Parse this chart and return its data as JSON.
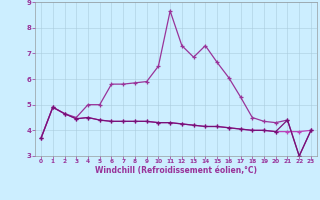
{
  "xlabel": "Windchill (Refroidissement éolien,°C)",
  "background_color": "#cceeff",
  "grid_color": "#aaccdd",
  "line_color1": "#993399",
  "line_color2": "#bb44bb",
  "line_color3": "#771177",
  "xmin": -0.5,
  "xmax": 23.5,
  "ymin": 3,
  "ymax": 9,
  "yticks": [
    3,
    4,
    5,
    6,
    7,
    8,
    9
  ],
  "xticks": [
    0,
    1,
    2,
    3,
    4,
    5,
    6,
    7,
    8,
    9,
    10,
    11,
    12,
    13,
    14,
    15,
    16,
    17,
    18,
    19,
    20,
    21,
    22,
    23
  ],
  "series1_x": [
    0,
    1,
    2,
    3,
    4,
    5,
    6,
    7,
    8,
    9,
    10,
    11,
    12,
    13,
    14,
    15,
    16,
    17,
    18,
    19,
    20,
    21,
    22,
    23
  ],
  "series1_y": [
    3.7,
    4.9,
    4.65,
    4.5,
    5.0,
    5.0,
    5.8,
    5.8,
    5.85,
    5.9,
    6.5,
    8.65,
    7.3,
    6.85,
    7.3,
    6.65,
    6.05,
    5.3,
    4.5,
    4.35,
    4.3,
    4.4,
    3.0,
    4.0
  ],
  "series2_x": [
    0,
    1,
    2,
    3,
    4,
    5,
    6,
    7,
    8,
    9,
    10,
    11,
    12,
    13,
    14,
    15,
    16,
    17,
    18,
    19,
    20,
    21,
    22,
    23
  ],
  "series2_y": [
    3.7,
    4.9,
    4.65,
    4.45,
    4.5,
    4.4,
    4.35,
    4.35,
    4.35,
    4.35,
    4.3,
    4.3,
    4.25,
    4.2,
    4.15,
    4.15,
    4.1,
    4.05,
    4.0,
    4.0,
    3.95,
    3.95,
    3.95,
    4.0
  ],
  "series3_x": [
    0,
    1,
    2,
    3,
    4,
    5,
    6,
    7,
    8,
    9,
    10,
    11,
    12,
    13,
    14,
    15,
    16,
    17,
    18,
    19,
    20,
    21,
    22,
    23
  ],
  "series3_y": [
    3.7,
    4.9,
    4.65,
    4.45,
    4.5,
    4.4,
    4.35,
    4.35,
    4.35,
    4.35,
    4.3,
    4.3,
    4.25,
    4.2,
    4.15,
    4.15,
    4.1,
    4.05,
    4.0,
    4.0,
    3.95,
    4.4,
    3.0,
    4.0
  ],
  "tick_color": "#993399",
  "xlabel_color": "#993399",
  "xlabel_fontsize": 5.5,
  "tick_fontsize_x": 4.2,
  "tick_fontsize_y": 5.0
}
